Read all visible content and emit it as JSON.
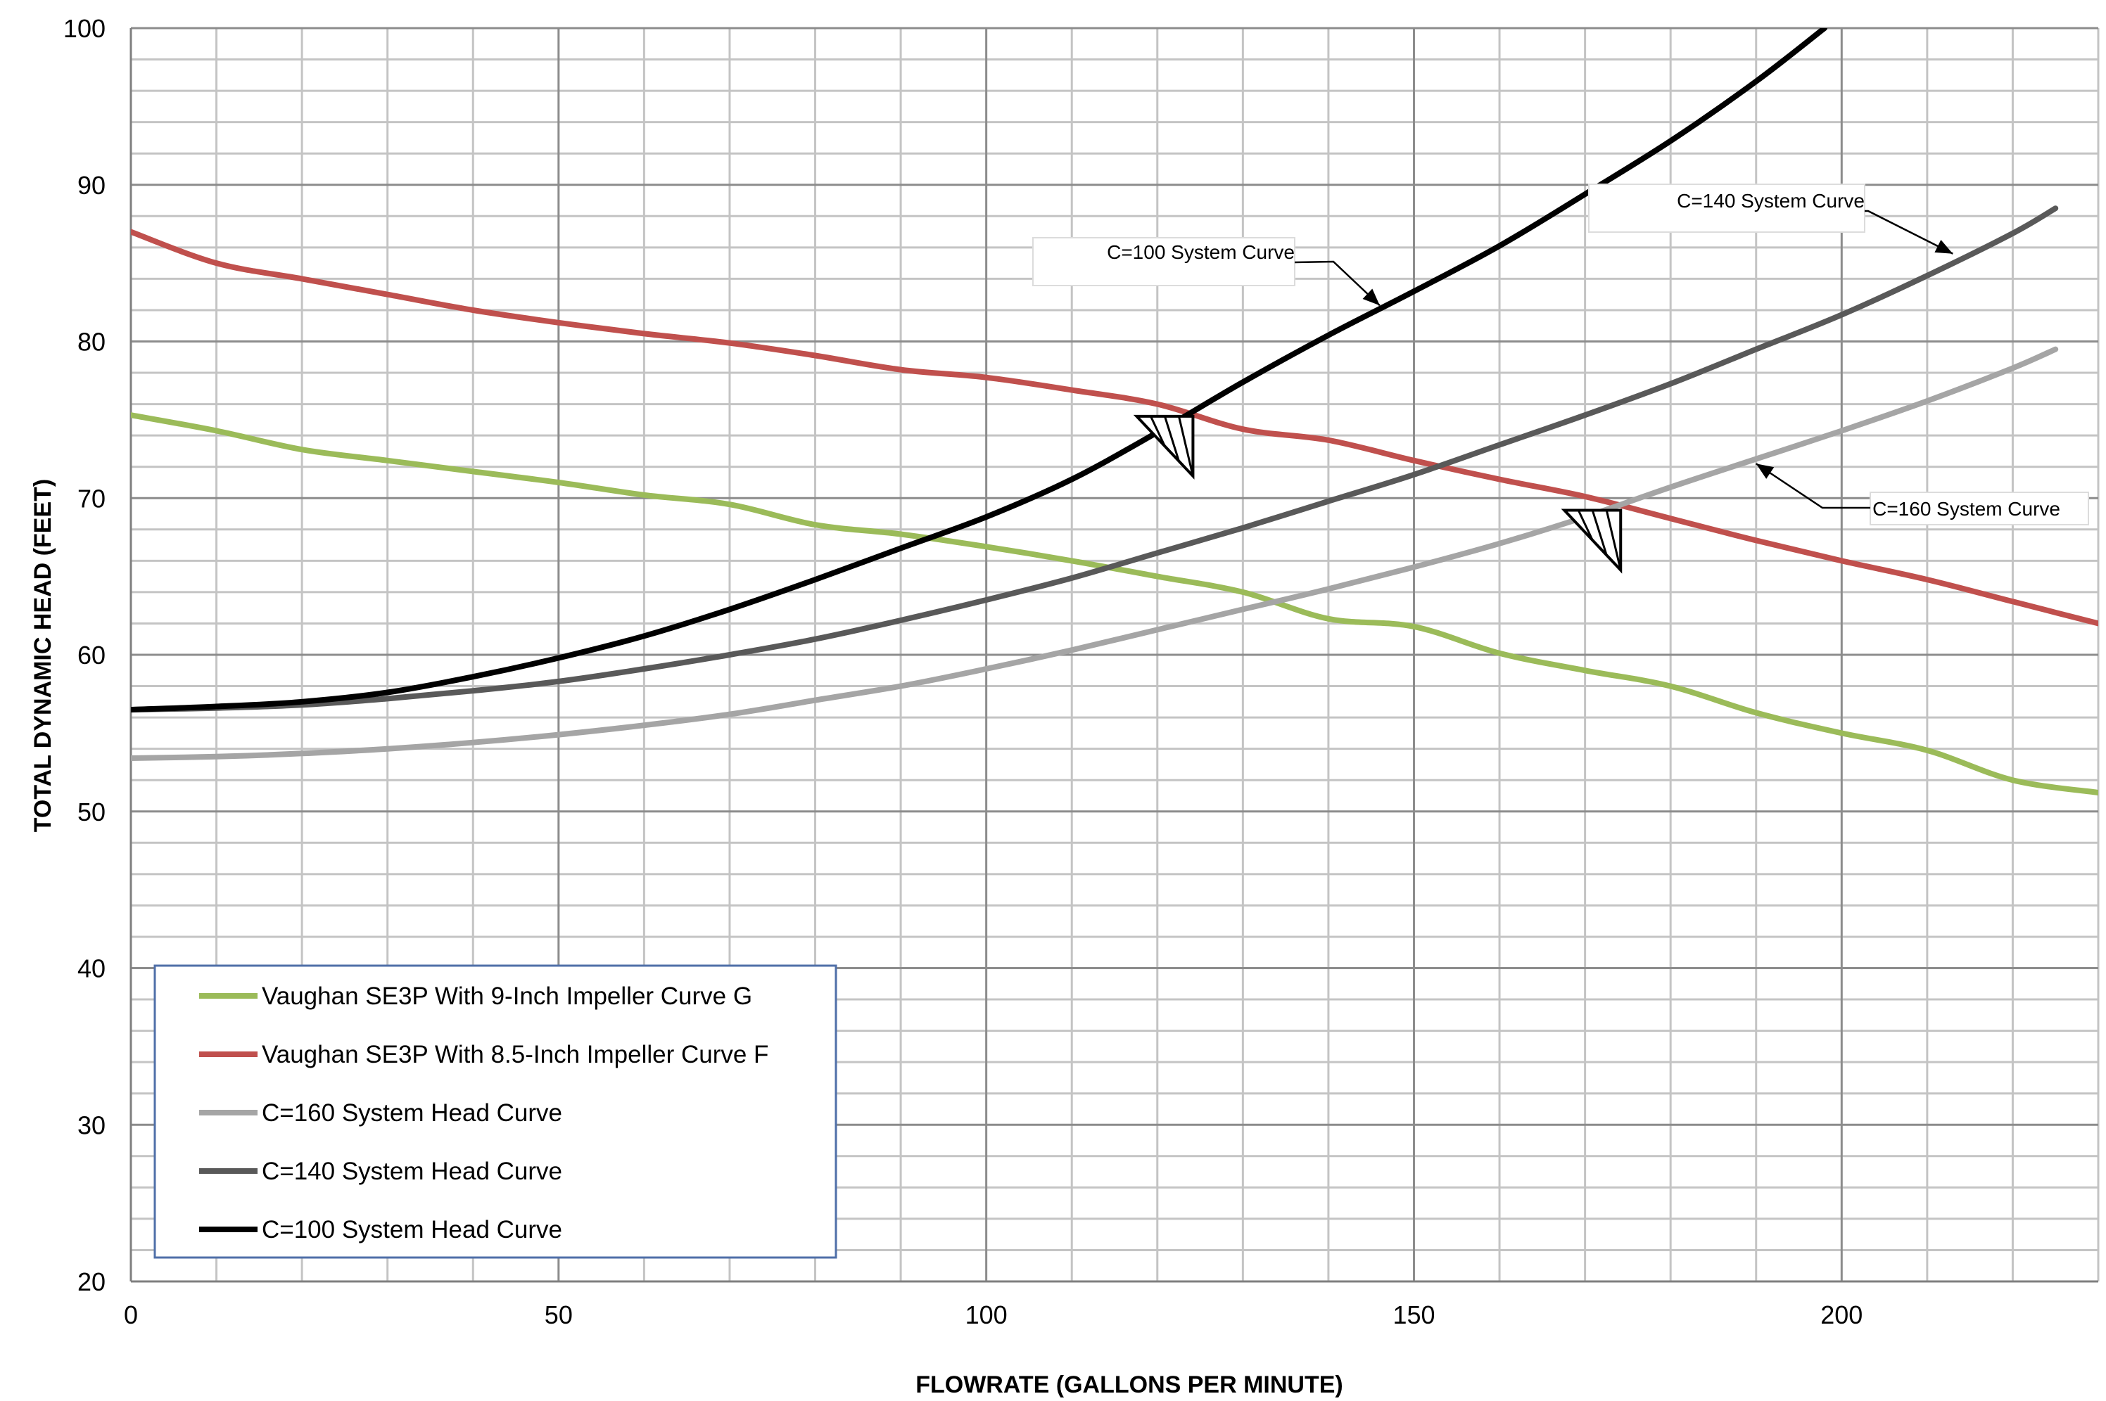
{
  "chart_data": {
    "type": "line",
    "xlabel": "FLOWRATE (GALLONS PER MINUTE)",
    "ylabel": "TOTAL DYNAMIC HEAD (FEET)",
    "xlim": [
      0,
      230
    ],
    "ylim": [
      20,
      100
    ],
    "x_ticks": [
      "0",
      "50",
      "100",
      "150",
      "200"
    ],
    "y_ticks": [
      "20",
      "30",
      "40",
      "50",
      "60",
      "70",
      "80",
      "90",
      "100"
    ],
    "grid": true,
    "legend_position": "bottom-left",
    "series": [
      {
        "name": "Vaughan SE3P With 9-Inch Impeller Curve G",
        "color": "#9bbb59",
        "points": [
          [
            0,
            75.3
          ],
          [
            10,
            74.3
          ],
          [
            20,
            73.1
          ],
          [
            30,
            72.4
          ],
          [
            40,
            71.7
          ],
          [
            50,
            71.0
          ],
          [
            60,
            70.2
          ],
          [
            70,
            69.6
          ],
          [
            80,
            68.3
          ],
          [
            90,
            67.7
          ],
          [
            100,
            66.9
          ],
          [
            110,
            66.0
          ],
          [
            120,
            65.0
          ],
          [
            130,
            64.0
          ],
          [
            140,
            62.3
          ],
          [
            150,
            61.8
          ],
          [
            160,
            60.1
          ],
          [
            170,
            59.0
          ],
          [
            180,
            58.0
          ],
          [
            190,
            56.3
          ],
          [
            200,
            55.0
          ],
          [
            210,
            53.9
          ],
          [
            220,
            52.0
          ],
          [
            230,
            51.2
          ]
        ]
      },
      {
        "name": "Vaughan SE3P With 8.5-Inch Impeller Curve F",
        "color": "#c0504d",
        "points": [
          [
            0,
            87.0
          ],
          [
            10,
            85.0
          ],
          [
            20,
            84.0
          ],
          [
            30,
            83.0
          ],
          [
            40,
            82.0
          ],
          [
            50,
            81.2
          ],
          [
            60,
            80.5
          ],
          [
            70,
            79.9
          ],
          [
            80,
            79.1
          ],
          [
            90,
            78.2
          ],
          [
            100,
            77.7
          ],
          [
            110,
            76.9
          ],
          [
            120,
            76.0
          ],
          [
            130,
            74.4
          ],
          [
            140,
            73.7
          ],
          [
            150,
            72.4
          ],
          [
            160,
            71.2
          ],
          [
            170,
            70.1
          ],
          [
            180,
            68.7
          ],
          [
            190,
            67.3
          ],
          [
            200,
            66.0
          ],
          [
            210,
            64.8
          ],
          [
            220,
            63.4
          ],
          [
            230,
            62.0
          ]
        ]
      },
      {
        "name": "C=160 System Head Curve",
        "color": "#a5a5a5",
        "points": [
          [
            0,
            53.4
          ],
          [
            10,
            53.5
          ],
          [
            20,
            53.7
          ],
          [
            30,
            54.0
          ],
          [
            40,
            54.4
          ],
          [
            50,
            54.9
          ],
          [
            60,
            55.5
          ],
          [
            70,
            56.2
          ],
          [
            80,
            57.1
          ],
          [
            90,
            58.0
          ],
          [
            100,
            59.1
          ],
          [
            110,
            60.3
          ],
          [
            120,
            61.6
          ],
          [
            130,
            62.9
          ],
          [
            140,
            64.2
          ],
          [
            150,
            65.6
          ],
          [
            160,
            67.1
          ],
          [
            170,
            68.8
          ],
          [
            180,
            70.7
          ],
          [
            190,
            72.5
          ],
          [
            200,
            74.3
          ],
          [
            210,
            76.2
          ],
          [
            220,
            78.3
          ],
          [
            225,
            79.5
          ]
        ]
      },
      {
        "name": "C=140 System Head Curve",
        "color": "#595959",
        "points": [
          [
            0,
            56.5
          ],
          [
            10,
            56.6
          ],
          [
            20,
            56.8
          ],
          [
            30,
            57.2
          ],
          [
            40,
            57.7
          ],
          [
            50,
            58.3
          ],
          [
            60,
            59.1
          ],
          [
            70,
            60.0
          ],
          [
            80,
            61.0
          ],
          [
            90,
            62.2
          ],
          [
            100,
            63.5
          ],
          [
            110,
            64.9
          ],
          [
            120,
            66.5
          ],
          [
            130,
            68.1
          ],
          [
            140,
            69.8
          ],
          [
            150,
            71.5
          ],
          [
            160,
            73.4
          ],
          [
            170,
            75.3
          ],
          [
            180,
            77.3
          ],
          [
            190,
            79.5
          ],
          [
            200,
            81.7
          ],
          [
            210,
            84.2
          ],
          [
            220,
            86.9
          ],
          [
            225,
            88.5
          ]
        ]
      },
      {
        "name": "C=100 System Head Curve",
        "color": "#000000",
        "points": [
          [
            0,
            56.5
          ],
          [
            10,
            56.7
          ],
          [
            20,
            57.0
          ],
          [
            30,
            57.6
          ],
          [
            40,
            58.6
          ],
          [
            50,
            59.8
          ],
          [
            60,
            61.2
          ],
          [
            70,
            62.9
          ],
          [
            80,
            64.8
          ],
          [
            90,
            66.8
          ],
          [
            100,
            68.8
          ],
          [
            110,
            71.2
          ],
          [
            120,
            74.2
          ],
          [
            130,
            77.4
          ],
          [
            140,
            80.4
          ],
          [
            150,
            83.2
          ],
          [
            160,
            86.1
          ],
          [
            170,
            89.4
          ],
          [
            180,
            92.8
          ],
          [
            190,
            96.6
          ],
          [
            198,
            100.0
          ]
        ]
      }
    ],
    "annotations": [
      {
        "text": "C=100 System Curve",
        "target": [
          146,
          82.3
        ]
      },
      {
        "text": "C=140 System Curve",
        "target": [
          213,
          85.6
        ]
      },
      {
        "text": "C=160 System Curve",
        "target": [
          190,
          72.2
        ]
      }
    ],
    "operating_points": [
      {
        "x": 124,
        "y": 75.0
      },
      {
        "x": 174,
        "y": 69.0
      }
    ]
  }
}
